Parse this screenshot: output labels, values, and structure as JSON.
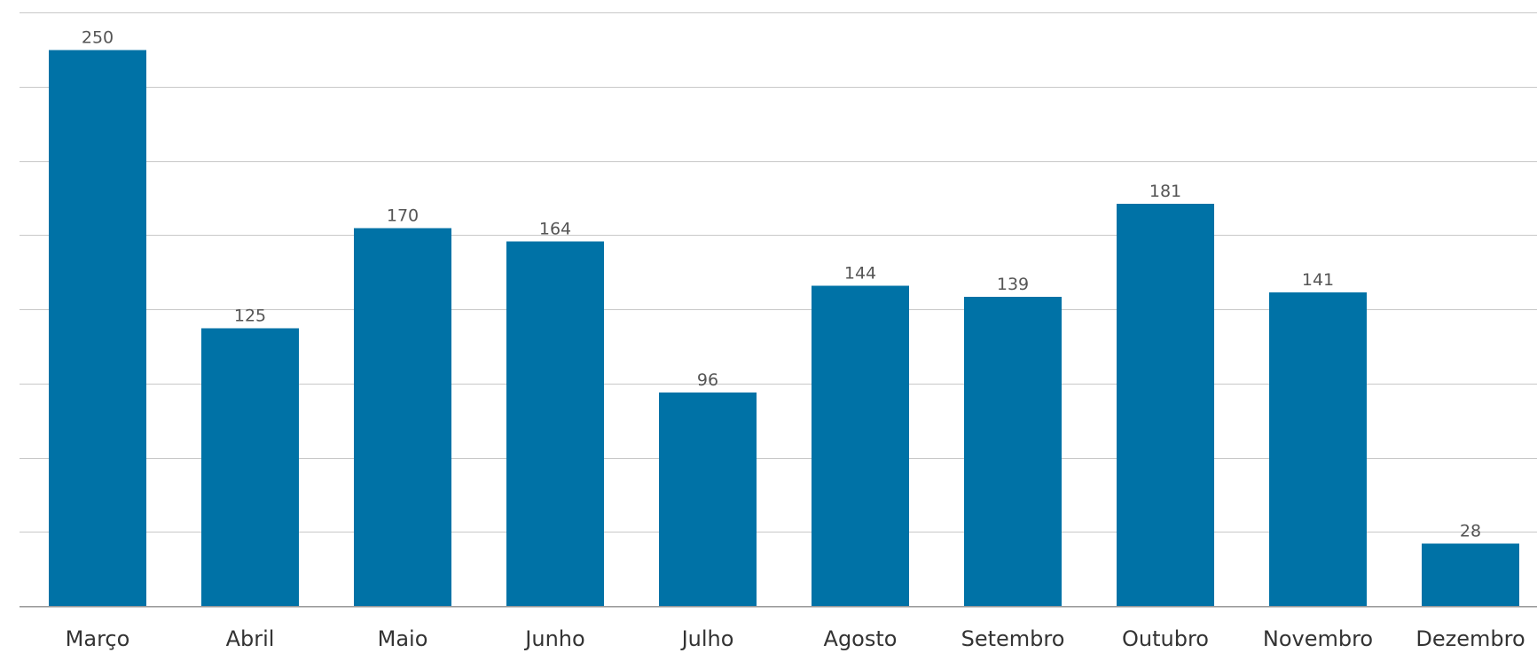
{
  "chart_data": {
    "type": "bar",
    "categories": [
      "Março",
      "Abril",
      "Maio",
      "Junho",
      "Julho",
      "Agosto",
      "Setembro",
      "Outubro",
      "Novembro",
      "Dezembro"
    ],
    "values": [
      250,
      125,
      170,
      164,
      96,
      144,
      139,
      181,
      141,
      28
    ],
    "title": "",
    "xlabel": "",
    "ylabel": "",
    "ylim": [
      0,
      267
    ],
    "grid": true,
    "data_labels": true,
    "legend": "none",
    "bar_color": "#0072a6"
  }
}
